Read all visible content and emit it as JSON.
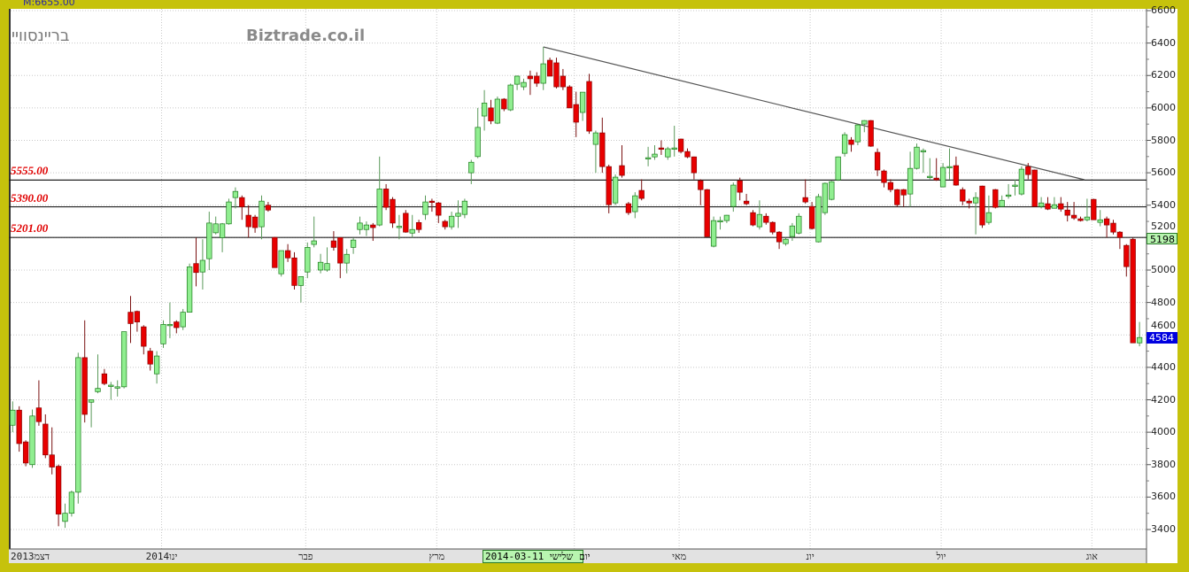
{
  "header": {
    "stock_name": "בריינסוויי",
    "site": "Biztrade.co.il",
    "top_value": "M:6655.00"
  },
  "colors": {
    "up": "#90ee90",
    "down": "#e80000",
    "frame": "#c6c20c",
    "level_text": "#e00000",
    "last_tag": "#0000e0",
    "prev_tag": "#b8f5b0"
  },
  "chart_data": {
    "type": "candlestick",
    "ylim": [
      3400,
      6600
    ],
    "y_ticks": [
      3400,
      3600,
      3800,
      4000,
      4200,
      4400,
      4600,
      4800,
      5000,
      5200,
      5400,
      5600,
      5800,
      6000,
      6200,
      6400,
      6600
    ],
    "grid": true,
    "x_labels": [
      {
        "label": "2013דצמ",
        "index": 0
      },
      {
        "label": "2014ינו",
        "index": 23
      },
      {
        "label": "פבר",
        "index": 45
      },
      {
        "label": "מרץ",
        "index": 65
      },
      {
        "label": "",
        "index": 86
      },
      {
        "label": "מאי",
        "index": 102
      },
      {
        "label": "יונ",
        "index": 122
      },
      {
        "label": "יול",
        "index": 142
      },
      {
        "label": "אוג",
        "index": 165
      }
    ],
    "cursor_date": "2014-03-11 יום שלישי",
    "levels": [
      {
        "value": 5555,
        "label": "5555.00"
      },
      {
        "value": 5390,
        "label": "5390.00"
      },
      {
        "value": 5201,
        "label": "5201.00"
      }
    ],
    "trendline": {
      "from": {
        "index": 81,
        "price": 6376
      },
      "to": {
        "index": 163.6,
        "price": 5557
      }
    },
    "price_tags": {
      "previous": "5198",
      "previous_value": 5198,
      "last": "4584",
      "last_value": 4584
    },
    "ohlc": [
      [
        4043,
        4190,
        4000,
        4136
      ],
      [
        4136,
        4160,
        3880,
        3930
      ],
      [
        3940,
        3950,
        3790,
        3810
      ],
      [
        3800,
        4140,
        3780,
        4100
      ],
      [
        4150,
        4320,
        4040,
        4065
      ],
      [
        4050,
        4110,
        3840,
        3860
      ],
      [
        3860,
        4030,
        3740,
        3785
      ],
      [
        3790,
        3800,
        3420,
        3495
      ],
      [
        3450,
        3560,
        3410,
        3500
      ],
      [
        3500,
        3640,
        3480,
        3630
      ],
      [
        3630,
        4490,
        3560,
        4460
      ],
      [
        4460,
        4690,
        4060,
        4110
      ],
      [
        4185,
        4200,
        4030,
        4200
      ],
      [
        4250,
        4480,
        4240,
        4270
      ],
      [
        4360,
        4390,
        4290,
        4300
      ],
      [
        4290,
        4310,
        4200,
        4290
      ],
      [
        4280,
        4320,
        4220,
        4280
      ],
      [
        4280,
        4620,
        4270,
        4620
      ],
      [
        4740,
        4840,
        4550,
        4670
      ],
      [
        4745,
        4750,
        4620,
        4680
      ],
      [
        4650,
        4660,
        4480,
        4530
      ],
      [
        4500,
        4520,
        4380,
        4420
      ],
      [
        4360,
        4500,
        4300,
        4470
      ],
      [
        4545,
        4690,
        4520,
        4665
      ],
      [
        4665,
        4800,
        4580,
        4665
      ],
      [
        4680,
        4690,
        4610,
        4645
      ],
      [
        4650,
        4760,
        4630,
        4740
      ],
      [
        4740,
        5040,
        4740,
        5020
      ],
      [
        5040,
        5200,
        4900,
        4985
      ],
      [
        4988,
        5190,
        4880,
        5060
      ],
      [
        5070,
        5360,
        5000,
        5290
      ],
      [
        5230,
        5330,
        5220,
        5285
      ],
      [
        5200,
        5290,
        5110,
        5285
      ],
      [
        5285,
        5440,
        5280,
        5420
      ],
      [
        5447,
        5510,
        5380,
        5485
      ],
      [
        5447,
        5460,
        5310,
        5390
      ],
      [
        5338,
        5400,
        5200,
        5267
      ],
      [
        5327,
        5340,
        5230,
        5262
      ],
      [
        5267,
        5460,
        5190,
        5425
      ],
      [
        5400,
        5420,
        5360,
        5370
      ],
      [
        5201,
        5205,
        5015,
        5015
      ],
      [
        4977,
        5120,
        4960,
        5120
      ],
      [
        5120,
        5160,
        5050,
        5075
      ],
      [
        5075,
        5110,
        4880,
        4905
      ],
      [
        4905,
        4960,
        4800,
        4960
      ],
      [
        4988,
        5170,
        4950,
        5140
      ],
      [
        5158,
        5330,
        5140,
        5180
      ],
      [
        5000,
        5100,
        4980,
        5048
      ],
      [
        5000,
        5140,
        4990,
        5040
      ],
      [
        5180,
        5240,
        5120,
        5140
      ],
      [
        5200,
        5200,
        4950,
        5043
      ],
      [
        5043,
        5130,
        4980,
        5097
      ],
      [
        5140,
        5200,
        5100,
        5185
      ],
      [
        5250,
        5330,
        5220,
        5290
      ],
      [
        5250,
        5300,
        5210,
        5278
      ],
      [
        5278,
        5290,
        5180,
        5262
      ],
      [
        5278,
        5700,
        5270,
        5500
      ],
      [
        5500,
        5530,
        5370,
        5387
      ],
      [
        5436,
        5450,
        5260,
        5290
      ],
      [
        5265,
        5340,
        5190,
        5270
      ],
      [
        5350,
        5370,
        5230,
        5234
      ],
      [
        5228,
        5340,
        5200,
        5250
      ],
      [
        5293,
        5310,
        5230,
        5250
      ],
      [
        5343,
        5460,
        5310,
        5420
      ],
      [
        5425,
        5440,
        5360,
        5420
      ],
      [
        5414,
        5420,
        5290,
        5338
      ],
      [
        5300,
        5310,
        5250,
        5267
      ],
      [
        5267,
        5360,
        5250,
        5332
      ],
      [
        5332,
        5430,
        5260,
        5350
      ],
      [
        5343,
        5440,
        5320,
        5425
      ],
      [
        5600,
        5680,
        5530,
        5665
      ],
      [
        5700,
        6000,
        5690,
        5880
      ],
      [
        5950,
        6110,
        5860,
        6030
      ],
      [
        6000,
        6050,
        5900,
        5920
      ],
      [
        5906,
        6070,
        5900,
        6054
      ],
      [
        6054,
        6060,
        5980,
        5994
      ],
      [
        5988,
        6150,
        5980,
        6141
      ],
      [
        6146,
        6200,
        6110,
        6196
      ],
      [
        6130,
        6180,
        6110,
        6157
      ],
      [
        6196,
        6230,
        6080,
        6180
      ],
      [
        6196,
        6220,
        6130,
        6152
      ],
      [
        6152,
        6376,
        6110,
        6272
      ],
      [
        6294,
        6310,
        6196,
        6196
      ],
      [
        6278,
        6310,
        6120,
        6130
      ],
      [
        6196,
        6240,
        6110,
        6130
      ],
      [
        6130,
        6140,
        6000,
        6000
      ],
      [
        6021,
        6100,
        5820,
        5912
      ],
      [
        5972,
        6097,
        5920,
        6097
      ],
      [
        6163,
        6210,
        5840,
        5857
      ],
      [
        5775,
        5860,
        5600,
        5846
      ],
      [
        5846,
        5940,
        5600,
        5638
      ],
      [
        5638,
        5650,
        5350,
        5403
      ],
      [
        5414,
        5590,
        5400,
        5573
      ],
      [
        5644,
        5770,
        5570,
        5584
      ],
      [
        5409,
        5420,
        5340,
        5354
      ],
      [
        5360,
        5480,
        5320,
        5458
      ],
      [
        5491,
        5560,
        5430,
        5442
      ],
      [
        5690,
        5760,
        5640,
        5693
      ],
      [
        5698,
        5770,
        5680,
        5715
      ],
      [
        5753,
        5800,
        5710,
        5747
      ],
      [
        5698,
        5760,
        5680,
        5748
      ],
      [
        5747,
        5890,
        5700,
        5753
      ],
      [
        5808,
        5810,
        5720,
        5731
      ],
      [
        5731,
        5750,
        5690,
        5698
      ],
      [
        5698,
        5700,
        5560,
        5600
      ],
      [
        5551,
        5560,
        5400,
        5496
      ],
      [
        5496,
        5500,
        5206,
        5206
      ],
      [
        5147,
        5330,
        5140,
        5305
      ],
      [
        5305,
        5330,
        5250,
        5305
      ],
      [
        5305,
        5340,
        5290,
        5338
      ],
      [
        5392,
        5540,
        5360,
        5524
      ],
      [
        5551,
        5570,
        5430,
        5480
      ],
      [
        5425,
        5470,
        5400,
        5409
      ],
      [
        5354,
        5370,
        5270,
        5278
      ],
      [
        5267,
        5430,
        5250,
        5343
      ],
      [
        5332,
        5350,
        5280,
        5294
      ],
      [
        5294,
        5300,
        5220,
        5234
      ],
      [
        5234,
        5240,
        5130,
        5174
      ],
      [
        5163,
        5200,
        5150,
        5190
      ],
      [
        5207,
        5290,
        5180,
        5272
      ],
      [
        5228,
        5350,
        5220,
        5332
      ],
      [
        5447,
        5560,
        5410,
        5420
      ],
      [
        5392,
        5420,
        5250,
        5256
      ],
      [
        5174,
        5470,
        5170,
        5453
      ],
      [
        5354,
        5540,
        5340,
        5535
      ],
      [
        5436,
        5550,
        5430,
        5545
      ],
      [
        5556,
        5700,
        5550,
        5698
      ],
      [
        5720,
        5850,
        5700,
        5835
      ],
      [
        5802,
        5820,
        5730,
        5775
      ],
      [
        5791,
        5900,
        5770,
        5895
      ],
      [
        5900,
        5925,
        5850,
        5922
      ],
      [
        5922,
        5925,
        5760,
        5764
      ],
      [
        5726,
        5750,
        5580,
        5617
      ],
      [
        5611,
        5620,
        5510,
        5540
      ],
      [
        5540,
        5560,
        5480,
        5496
      ],
      [
        5496,
        5500,
        5390,
        5403
      ],
      [
        5496,
        5500,
        5390,
        5463
      ],
      [
        5469,
        5730,
        5390,
        5627
      ],
      [
        5627,
        5780,
        5620,
        5758
      ],
      [
        5737,
        5750,
        5600,
        5737
      ],
      [
        5578,
        5690,
        5560,
        5578
      ],
      [
        5567,
        5690,
        5550,
        5556
      ],
      [
        5513,
        5660,
        5510,
        5633
      ],
      [
        5638,
        5750,
        5560,
        5638
      ],
      [
        5644,
        5700,
        5520,
        5524
      ],
      [
        5496,
        5510,
        5400,
        5425
      ],
      [
        5425,
        5440,
        5380,
        5414
      ],
      [
        5414,
        5480,
        5220,
        5447
      ],
      [
        5518,
        5520,
        5260,
        5278
      ],
      [
        5294,
        5460,
        5280,
        5354
      ],
      [
        5496,
        5500,
        5380,
        5387
      ],
      [
        5392,
        5460,
        5390,
        5430
      ],
      [
        5463,
        5530,
        5440,
        5463
      ],
      [
        5518,
        5560,
        5460,
        5524
      ],
      [
        5469,
        5640,
        5460,
        5622
      ],
      [
        5638,
        5660,
        5560,
        5589
      ],
      [
        5617,
        5620,
        5392,
        5392
      ],
      [
        5392,
        5450,
        5380,
        5414
      ],
      [
        5409,
        5450,
        5370,
        5376
      ],
      [
        5381,
        5450,
        5380,
        5403
      ],
      [
        5409,
        5450,
        5360,
        5376
      ],
      [
        5370,
        5420,
        5300,
        5338
      ],
      [
        5338,
        5420,
        5310,
        5321
      ],
      [
        5316,
        5330,
        5300,
        5305
      ],
      [
        5310,
        5440,
        5300,
        5327
      ],
      [
        5436,
        5440,
        5310,
        5310
      ],
      [
        5294,
        5370,
        5270,
        5310
      ],
      [
        5316,
        5330,
        5200,
        5278
      ],
      [
        5289,
        5310,
        5220,
        5234
      ],
      [
        5234,
        5240,
        5130,
        5201
      ],
      [
        5152,
        5160,
        4960,
        5021
      ],
      [
        5190,
        5200,
        4551,
        4551
      ],
      [
        4551,
        4680,
        4530,
        4584
      ]
    ]
  }
}
